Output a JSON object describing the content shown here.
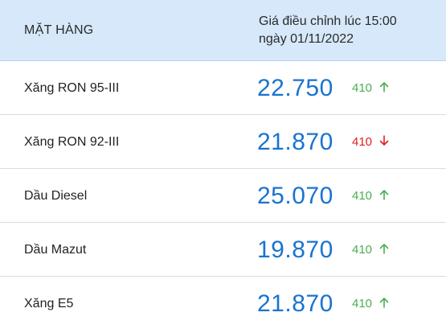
{
  "header": {
    "item_label": "MẶT HÀNG",
    "price_label_line1": "Giá điều chỉnh lúc 15:00",
    "price_label_line2": "ngày 01/11/2022"
  },
  "rows": [
    {
      "name": "Xăng RON 95-III",
      "price": "22.750",
      "change": "410",
      "direction": "up"
    },
    {
      "name": "Xăng RON 92-III",
      "price": "21.870",
      "change": "410",
      "direction": "down"
    },
    {
      "name": "Dầu Diesel",
      "price": "25.070",
      "change": "410",
      "direction": "up"
    },
    {
      "name": "Dầu Mazut",
      "price": "19.870",
      "change": "410",
      "direction": "up"
    },
    {
      "name": "Xăng E5",
      "price": "21.870",
      "change": "410",
      "direction": "up"
    }
  ],
  "colors": {
    "header_bg": "#d6e8f9",
    "price": "#1a73d0",
    "up": "#4cae50",
    "down": "#e02020"
  },
  "icons": {
    "up": "arrow-up-icon",
    "down": "arrow-down-icon"
  }
}
